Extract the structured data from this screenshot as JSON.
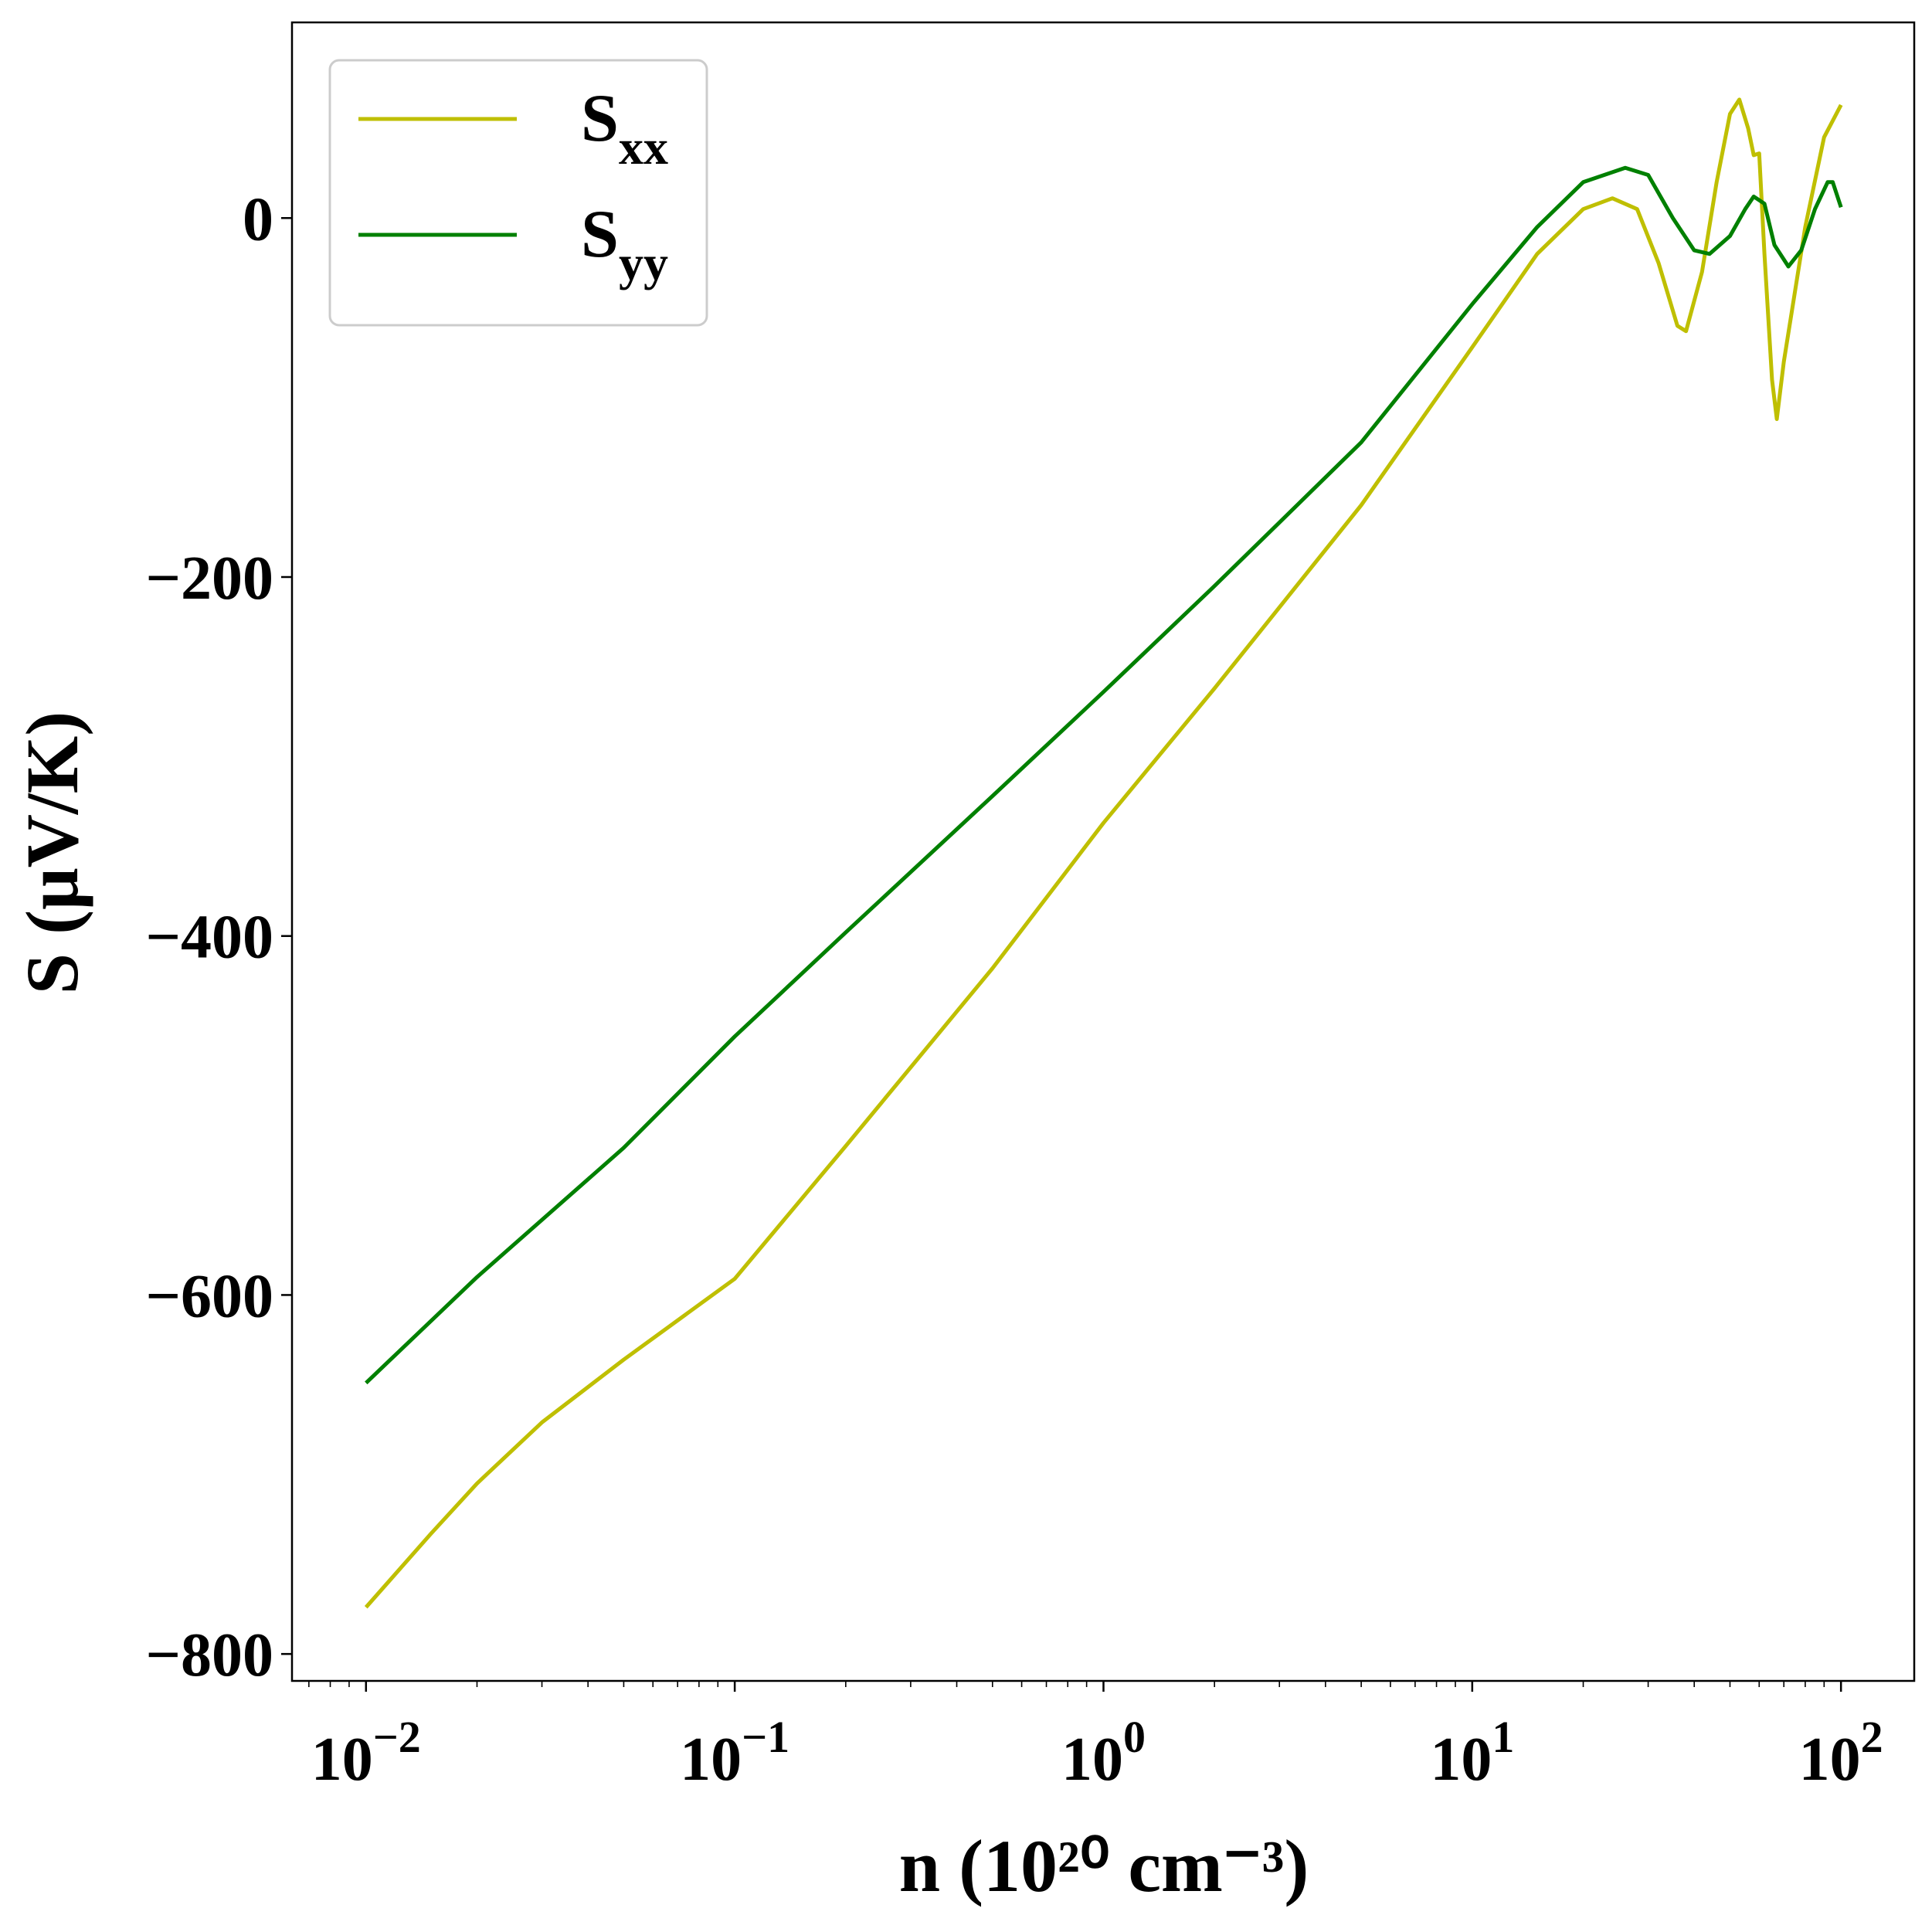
{
  "chart_data": {
    "type": "line",
    "xlabel": "n (10²⁰ cm⁻³)",
    "ylabel": "S (μV/K)",
    "xscale": "log",
    "xlim": [
      0.0063,
      158
    ],
    "ylim": [
      -815,
      109
    ],
    "xticks": [
      {
        "value": 0.01,
        "label": "10−2"
      },
      {
        "value": 0.1,
        "label": "10−1"
      },
      {
        "value": 1,
        "label": "100"
      },
      {
        "value": 10,
        "label": "101"
      },
      {
        "value": 100,
        "label": "102"
      }
    ],
    "yticks": [
      {
        "value": -800,
        "label": "−800"
      },
      {
        "value": -600,
        "label": "−600"
      },
      {
        "value": -400,
        "label": "−400"
      },
      {
        "value": -200,
        "label": "−200"
      },
      0
    ],
    "minor_ticks": true,
    "legend": "upper left",
    "series": [
      {
        "name": "Sxx",
        "color": "#bfbf00",
        "x": [
          0.01,
          0.015,
          0.02,
          0.03,
          0.05,
          0.1,
          0.2,
          0.5,
          1,
          2,
          5,
          10,
          15,
          20,
          24,
          28,
          32,
          36,
          38,
          42,
          46,
          50,
          53,
          56,
          58,
          60,
          62,
          65,
          67,
          70,
          80,
          90,
          100
        ],
        "values": [
          -774,
          -733,
          -705,
          -671,
          -636,
          -591,
          -517,
          -418,
          -337,
          -262,
          -160,
          -72,
          -20,
          5,
          11,
          5,
          -25,
          -60,
          -63,
          -30,
          20,
          58,
          66,
          50,
          35,
          36,
          -20,
          -90,
          -112,
          -80,
          -5,
          45,
          63
        ]
      },
      {
        "name": "Syy",
        "color": "#008000",
        "x": [
          0.01,
          0.02,
          0.05,
          0.1,
          0.2,
          0.5,
          1,
          2,
          5,
          10,
          15,
          20,
          26,
          30,
          35,
          40,
          44,
          50,
          55,
          58,
          62,
          66,
          72,
          78,
          85,
          92,
          95,
          100
        ],
        "values": [
          -649,
          -590,
          -518,
          -456,
          -398,
          -322,
          -264,
          -205,
          -125,
          -48,
          -5,
          20,
          28,
          24,
          0,
          -18,
          -20,
          -10,
          5,
          12,
          8,
          -15,
          -27,
          -18,
          5,
          20,
          20,
          6
        ]
      }
    ]
  }
}
